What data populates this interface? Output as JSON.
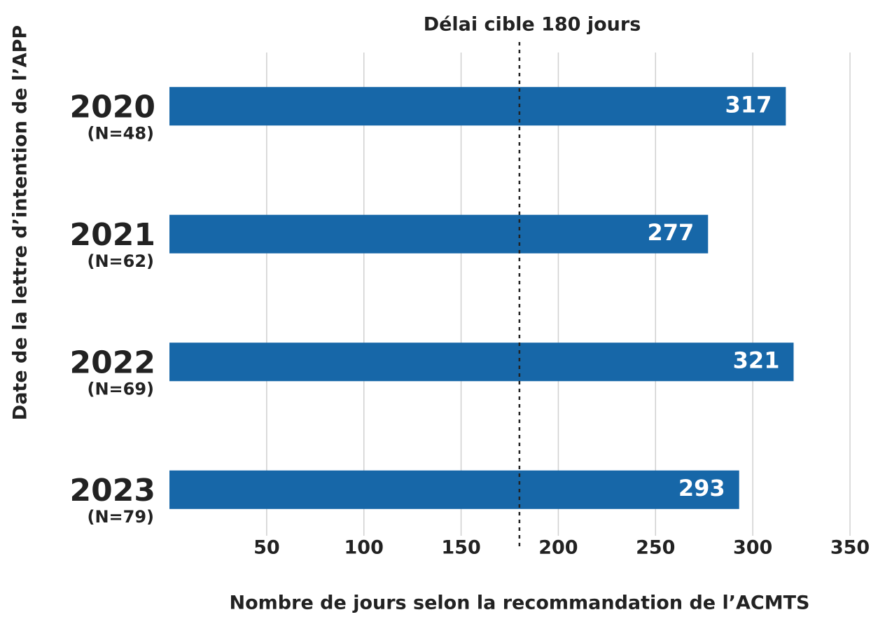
{
  "chart_data": {
    "type": "barh",
    "reference_label": "Délai cible 180 jours",
    "reference_value": 180,
    "xlabel": "Nombre de jours selon la recommandation de l’ACMTS",
    "ylabel": "Date de la lettre d’intention de l’APP",
    "categories": [
      "2020",
      "2021",
      "2022",
      "2023"
    ],
    "category_notes": [
      "(N=48)",
      "(N=62)",
      "(N=69)",
      "(N=79)"
    ],
    "values": [
      317,
      277,
      321,
      293
    ],
    "color": "#1767a8",
    "xlim": [
      0,
      350
    ],
    "xticks": [
      50,
      100,
      150,
      200,
      250,
      300,
      350
    ],
    "grid": true
  }
}
